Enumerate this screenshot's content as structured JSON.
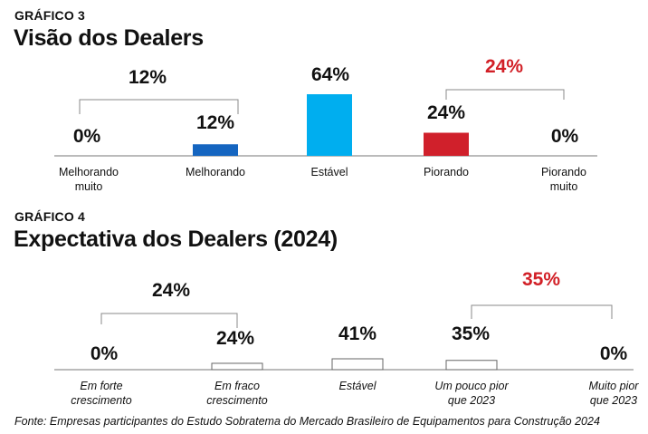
{
  "chart_data": [
    {
      "type": "bar",
      "kicker": "GRÁFICO 3",
      "title": "Visão dos Dealers",
      "categories": [
        [
          "Melhorando",
          "muito"
        ],
        [
          "Melhorando"
        ],
        [
          "Estável"
        ],
        [
          "Piorando"
        ],
        [
          "Piorando",
          "muito"
        ]
      ],
      "values": [
        0,
        12,
        64,
        24,
        0
      ],
      "value_labels": [
        "0%",
        "12%",
        "64%",
        "24%",
        "0%"
      ],
      "colors": [
        "#1565c0",
        "#1565c0",
        "#00aeef",
        "#d0202b",
        "#d0202b"
      ],
      "bracket_left_label": "12%",
      "bracket_right_label": "24%",
      "bracket_right_color": "#d22027"
    },
    {
      "type": "bar",
      "kicker": "GRÁFICO 4",
      "title": "Expectativa dos Dealers (2024)",
      "categories": [
        [
          "Em forte",
          "crescimento"
        ],
        [
          "Em fraco",
          "crescimento"
        ],
        [
          "Estável"
        ],
        [
          "Um pouco pior",
          "que 2023"
        ],
        [
          "Muito pior",
          "que 2023"
        ]
      ],
      "values": [
        0,
        24,
        41,
        35,
        0
      ],
      "value_labels": [
        "0%",
        "24%",
        "41%",
        "35%",
        "0%"
      ],
      "colors": [
        "#ffffff",
        "#ffffff",
        "#ffffff",
        "#ffffff",
        "#ffffff"
      ],
      "bracket_left_label": "24%",
      "bracket_right_label": "35%",
      "bracket_right_color": "#d22027"
    }
  ],
  "footer": "Fonte: Empresas participantes do Estudo Sobratema do Mercado Brasileiro de Equipamentos para Construção 2024"
}
